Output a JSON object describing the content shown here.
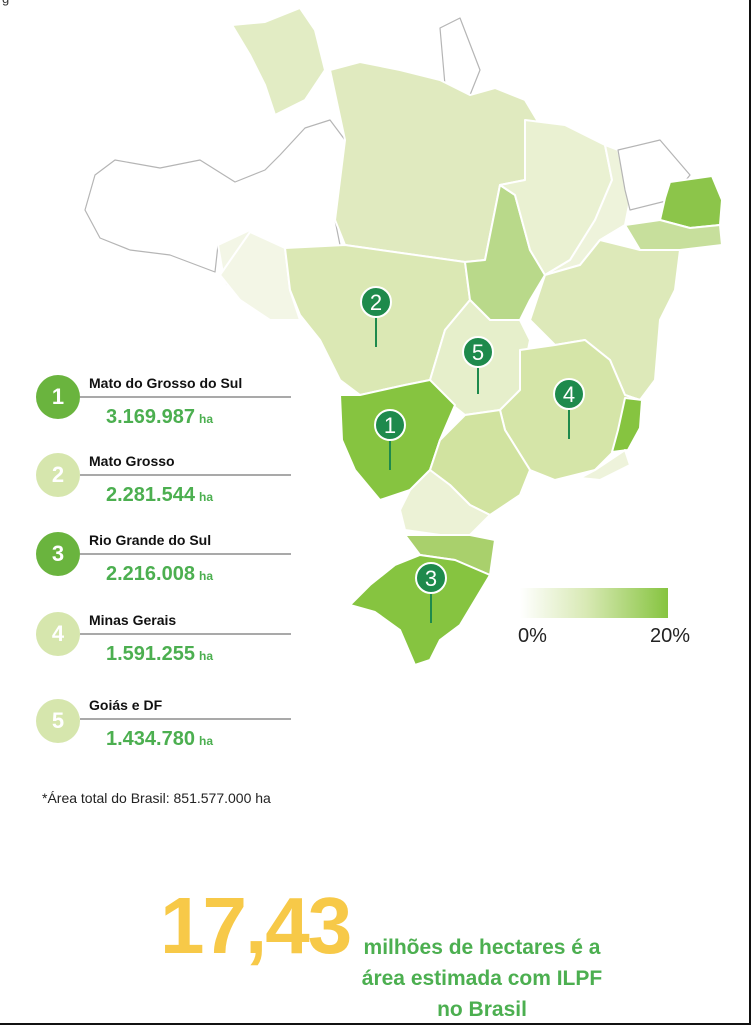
{
  "page": {
    "top_caption": "g",
    "footnote": "*Área total do Brasil: 851.577.000 ha"
  },
  "legend": {
    "min_label": "0%",
    "max_label": "20%",
    "color_min": "#ffffff",
    "color_max": "#86c440"
  },
  "ranking": [
    {
      "rank": "1",
      "state": "Mato do Grosso do Sul",
      "value": "3.169.987",
      "unit": "ha",
      "color": "#6ab43e"
    },
    {
      "rank": "2",
      "state": "Mato Grosso",
      "value": "2.281.544",
      "unit": "ha",
      "color": "#d6e6ad"
    },
    {
      "rank": "3",
      "state": "Rio Grande do Sul",
      "value": "2.216.008",
      "unit": "ha",
      "color": "#6ab43e"
    },
    {
      "rank": "4",
      "state": "Minas Gerais",
      "value": "1.591.255",
      "unit": "ha",
      "color": "#d6e6ad"
    },
    {
      "rank": "5",
      "state": "Goiás e DF",
      "value": "1.434.780",
      "unit": "ha",
      "color": "#d6e6ad"
    }
  ],
  "map_pins": [
    {
      "label": "1",
      "state": "Mato Grosso do Sul"
    },
    {
      "label": "2",
      "state": "Mato Grosso"
    },
    {
      "label": "3",
      "state": "Rio Grande do Sul"
    },
    {
      "label": "4",
      "state": "Minas Gerais"
    },
    {
      "label": "5",
      "state": "Goiás"
    }
  ],
  "headline": {
    "number": "17,43",
    "text": "milhões de hectares é a área estimada com ILPF no Brasil"
  },
  "colors": {
    "pin": "#1e8a4c",
    "highlight_green": "#86c440",
    "number_yellow": "#f7c948",
    "value_green": "#4caf50"
  }
}
